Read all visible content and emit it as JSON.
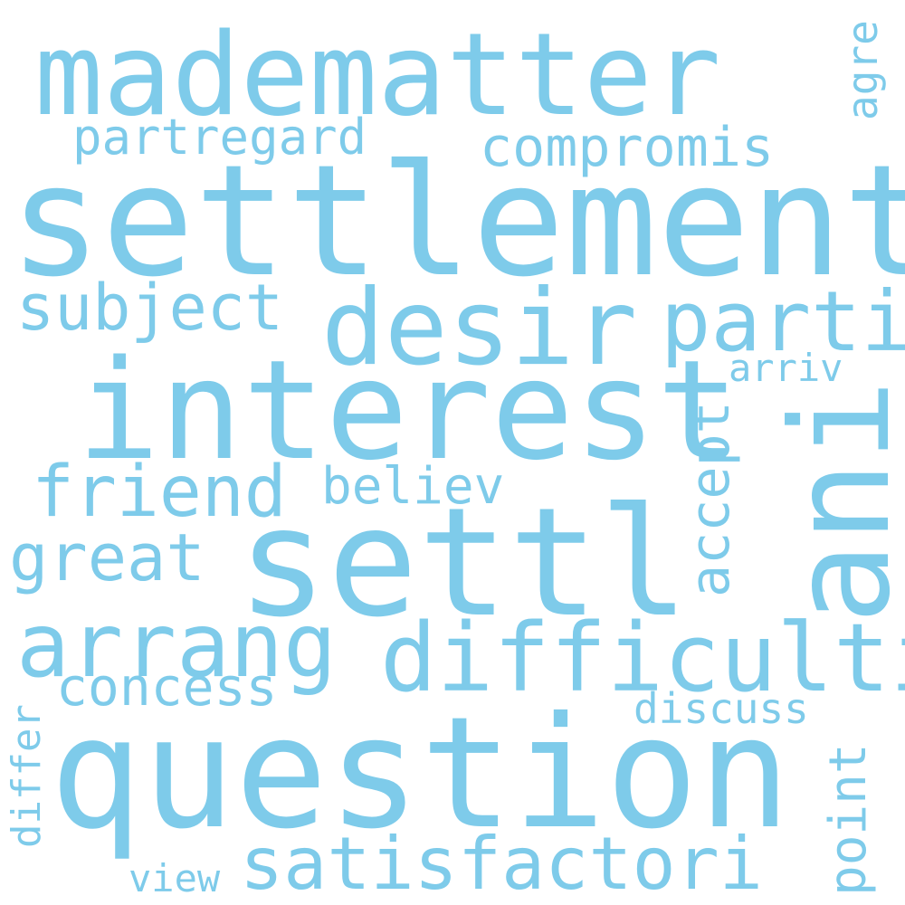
{
  "style": {
    "background": "#ffffff",
    "word_color": "#7ecbea"
  },
  "words": {
    "madematter": "madematter",
    "settlement": "settlement",
    "partregard": "partregard",
    "compromis": "compromis",
    "agre": "agre",
    "desir": "desir",
    "parti": "parti",
    "subject": "subject",
    "interest": "interest",
    "arriv": "arriv",
    "ani": "ani",
    "accept": "accept",
    "friend": "friend",
    "believ": "believ",
    "great": "great",
    "settl": "settl",
    "arrang": "arrang",
    "difficulti": "difficulti",
    "concess": "concess",
    "discuss": "discuss",
    "question": "question",
    "differ": "differ",
    "point": "point",
    "satisfactori": "satisfactori",
    "view": "view"
  }
}
